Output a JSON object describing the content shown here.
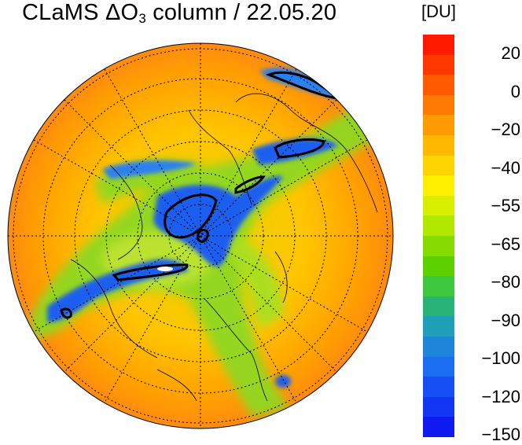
{
  "title": {
    "prefix": "CLaMS ",
    "delta": "ΔO",
    "sub": "3",
    "suffix": " column / 22.05.20"
  },
  "colorbar": {
    "unit": "[DU]",
    "ticks": [
      "20",
      "0",
      "−20",
      "−40",
      "−55",
      "−65",
      "−80",
      "−90",
      "−100",
      "−120",
      "−150"
    ],
    "colors": [
      "#ff1a00",
      "#ff3800",
      "#ff5a00",
      "#ff7a00",
      "#ff9a00",
      "#ffb800",
      "#ffd400",
      "#fff000",
      "#d8f000",
      "#b0e800",
      "#86dc00",
      "#5cd000",
      "#3ec840",
      "#28b478",
      "#20a0b8",
      "#1e86d8",
      "#1a6ef0",
      "#1650f4",
      "#1236f2",
      "#0e1af0"
    ]
  }
}
